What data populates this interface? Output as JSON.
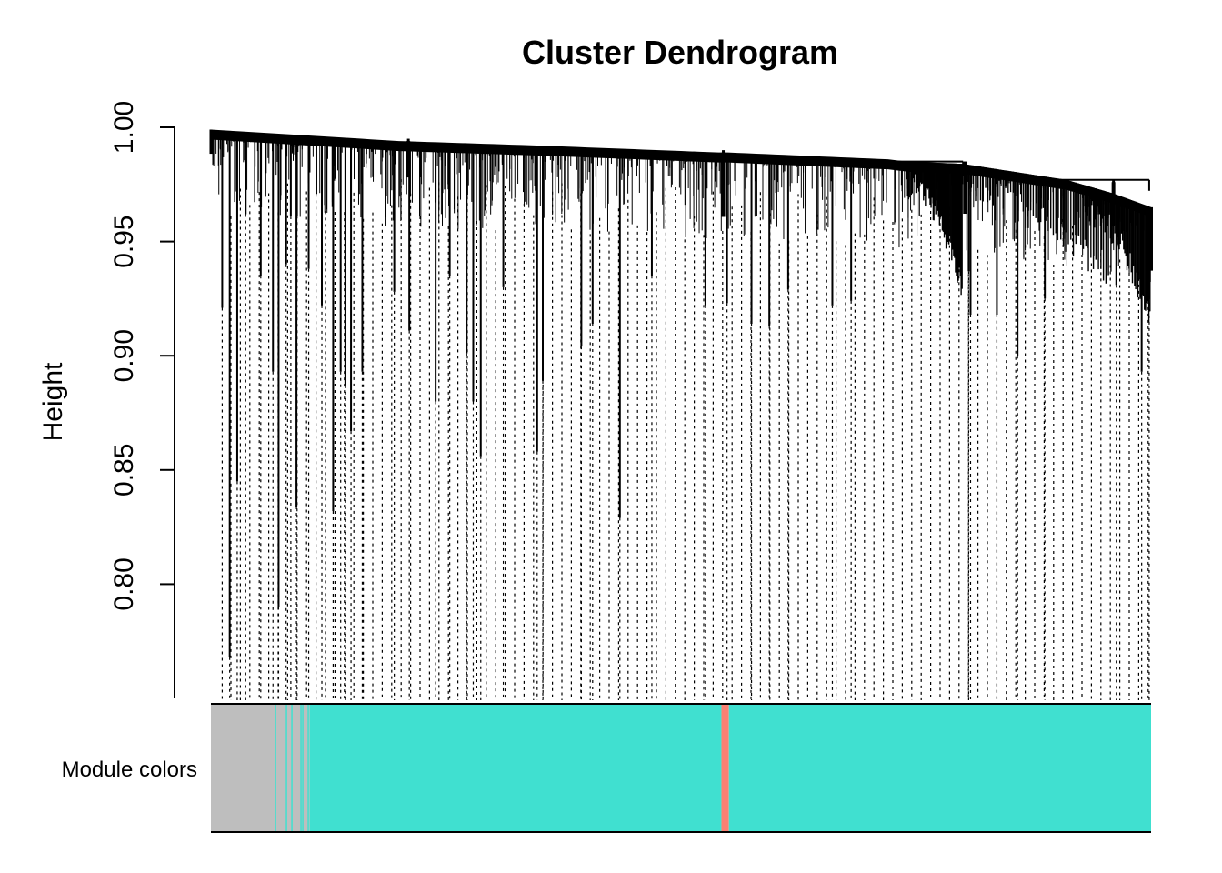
{
  "chart_data": {
    "type": "dendrogram",
    "title": "Cluster Dendrogram",
    "xlabel": "",
    "ylabel": "Height",
    "ylim": [
      0.75,
      1.0
    ],
    "yticks": [
      0.8,
      0.85,
      0.9,
      0.95,
      1.0
    ],
    "ytick_labels": [
      "0.80",
      "0.85",
      "0.90",
      "0.95",
      "1.00"
    ],
    "top_envelope": [
      [
        0,
        0.999
      ],
      [
        0.2,
        0.994
      ],
      [
        0.35,
        0.992
      ],
      [
        0.54,
        0.989
      ],
      [
        0.55,
        0.989
      ],
      [
        0.72,
        0.986
      ],
      [
        0.74,
        0.985
      ],
      [
        0.8,
        0.984
      ],
      [
        0.91,
        0.977
      ],
      [
        0.96,
        0.971
      ],
      [
        1.0,
        0.965
      ]
    ],
    "clusters": [
      {
        "from": 0.0,
        "to": 0.21,
        "top": 0.999,
        "base": 0.994
      },
      {
        "from": 0.21,
        "to": 0.545,
        "top": 0.995,
        "base": 0.989
      },
      {
        "from": 0.545,
        "to": 0.802,
        "top": 0.99,
        "base": 0.985
      },
      {
        "from": 0.802,
        "to": 0.96,
        "top": 0.985,
        "base": 0.976
      },
      {
        "from": 0.96,
        "to": 1.0,
        "top": 0.977,
        "base": 0.965
      }
    ],
    "high_merges": [
      {
        "from": 0.73,
        "to": 0.8,
        "height": 0.985
      },
      {
        "from": 0.9,
        "to": 0.998,
        "height": 0.977
      }
    ],
    "long_leaves": [
      {
        "x": 0.012,
        "y": 0.921
      },
      {
        "x": 0.02,
        "y": 0.768
      },
      {
        "x": 0.028,
        "y": 0.845
      },
      {
        "x": 0.037,
        "y": 0.962
      },
      {
        "x": 0.053,
        "y": 0.935
      },
      {
        "x": 0.066,
        "y": 0.893
      },
      {
        "x": 0.072,
        "y": 0.79
      },
      {
        "x": 0.08,
        "y": 0.94
      },
      {
        "x": 0.085,
        "y": 0.961
      },
      {
        "x": 0.091,
        "y": 0.834
      },
      {
        "x": 0.104,
        "y": 0.938
      },
      {
        "x": 0.118,
        "y": 0.922
      },
      {
        "x": 0.13,
        "y": 0.832
      },
      {
        "x": 0.138,
        "y": 0.893
      },
      {
        "x": 0.143,
        "y": 0.887
      },
      {
        "x": 0.149,
        "y": 0.867
      },
      {
        "x": 0.161,
        "y": 0.893
      },
      {
        "x": 0.195,
        "y": 0.928
      },
      {
        "x": 0.211,
        "y": 0.911
      },
      {
        "x": 0.239,
        "y": 0.88
      },
      {
        "x": 0.254,
        "y": 0.935
      },
      {
        "x": 0.272,
        "y": 0.901
      },
      {
        "x": 0.279,
        "y": 0.88
      },
      {
        "x": 0.287,
        "y": 0.856
      },
      {
        "x": 0.311,
        "y": 0.93
      },
      {
        "x": 0.347,
        "y": 0.858
      },
      {
        "x": 0.353,
        "y": 0.889
      },
      {
        "x": 0.394,
        "y": 0.904
      },
      {
        "x": 0.406,
        "y": 0.914
      },
      {
        "x": 0.435,
        "y": 0.829
      },
      {
        "x": 0.469,
        "y": 0.935
      },
      {
        "x": 0.526,
        "y": 0.922
      },
      {
        "x": 0.549,
        "y": 0.923
      },
      {
        "x": 0.575,
        "y": 0.914
      },
      {
        "x": 0.594,
        "y": 0.913
      },
      {
        "x": 0.614,
        "y": 0.929
      },
      {
        "x": 0.661,
        "y": 0.922
      },
      {
        "x": 0.681,
        "y": 0.924
      },
      {
        "x": 0.806,
        "y": 0.937
      },
      {
        "x": 0.808,
        "y": 0.918
      },
      {
        "x": 0.836,
        "y": 0.918
      },
      {
        "x": 0.858,
        "y": 0.9
      },
      {
        "x": 0.887,
        "y": 0.925
      },
      {
        "x": 0.963,
        "y": 0.931
      },
      {
        "x": 0.99,
        "y": 0.893
      },
      {
        "x": 0.998,
        "y": 0.926
      }
    ],
    "module_colors": {
      "label": "Module colors",
      "segments": [
        {
          "from": 0.0,
          "to": 0.068,
          "color": "#bebebe"
        },
        {
          "from": 0.068,
          "to": 0.105,
          "color": "#bebebe",
          "mixed_with": "#40e0d0"
        },
        {
          "from": 0.105,
          "to": 0.543,
          "color": "#40e0d0"
        },
        {
          "from": 0.543,
          "to": 0.551,
          "color": "#fa8072"
        },
        {
          "from": 0.551,
          "to": 1.0,
          "color": "#40e0d0"
        }
      ]
    }
  }
}
